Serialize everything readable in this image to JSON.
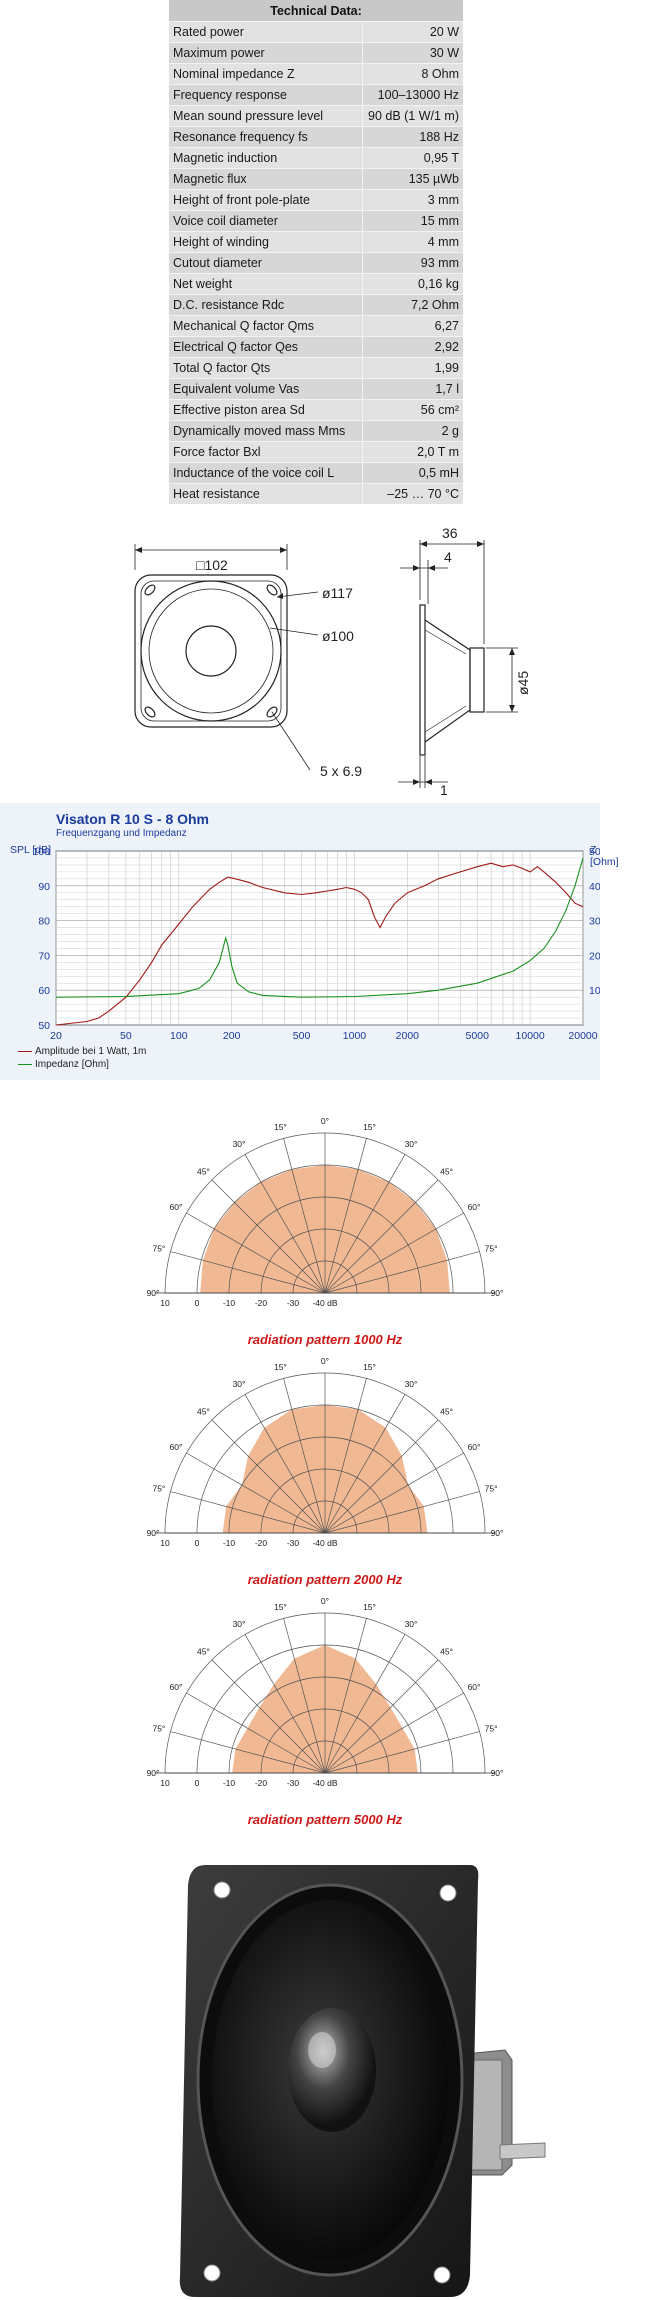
{
  "spec_table": {
    "title": "Technical Data:",
    "rows": [
      {
        "label": "Rated power",
        "value": "20 W"
      },
      {
        "label": "Maximum power",
        "value": "30 W"
      },
      {
        "label": "Nominal impedance Z",
        "value": "8 Ohm"
      },
      {
        "label": "Frequency response",
        "value": "100–13000 Hz"
      },
      {
        "label": "Mean sound pressure level",
        "value": "90 dB (1 W/1 m)"
      },
      {
        "label": "Resonance frequency fs",
        "value": "188 Hz"
      },
      {
        "label": "Magnetic induction",
        "value": "0,95 T"
      },
      {
        "label": "Magnetic flux",
        "value": "135 µWb"
      },
      {
        "label": "Height of front pole-plate",
        "value": "3 mm"
      },
      {
        "label": "Voice coil diameter",
        "value": "15 mm"
      },
      {
        "label": "Height of winding",
        "value": "4 mm"
      },
      {
        "label": "Cutout diameter",
        "value": "93 mm"
      },
      {
        "label": "Net weight",
        "value": "0,16 kg"
      },
      {
        "label": "D.C. resistance Rdc",
        "value": "7,2 Ohm"
      },
      {
        "label": "Mechanical Q factor Qms",
        "value": "6,27"
      },
      {
        "label": "Electrical Q factor Qes",
        "value": "2,92"
      },
      {
        "label": "Total Q factor Qts",
        "value": "1,99"
      },
      {
        "label": "Equivalent volume Vas",
        "value": "1,7 l"
      },
      {
        "label": "Effective piston area Sd",
        "value": "56 cm²"
      },
      {
        "label": "Dynamically moved mass Mms",
        "value": "2 g"
      },
      {
        "label": "Force factor Bxl",
        "value": "2,0 T m"
      },
      {
        "label": "Inductance of the voice coil L",
        "value": "0,5 mH"
      },
      {
        "label": "Heat resistance",
        "value": "–25 … 70 °C"
      }
    ]
  },
  "drawing": {
    "front_width": "□102",
    "outer_dia": "ø117",
    "inner_dia": "ø100",
    "holes": "5 x 6.9",
    "depth": "36",
    "flange": "4",
    "magnet_dia": "ø45",
    "thickness": "1"
  },
  "chart_data": [
    {
      "type": "line",
      "title": "Visaton R 10 S - 8 Ohm",
      "subtitle": "Frequenzgang und Impedanz",
      "ylabel": "SPL [dB]",
      "y2label": "Z [Ohm]",
      "x_scale": "log",
      "xlim": [
        20,
        20000
      ],
      "ylim": [
        50,
        100
      ],
      "y2lim": [
        0,
        50
      ],
      "x_ticks": [
        20,
        50,
        100,
        200,
        500,
        1000,
        2000,
        5000,
        10000,
        20000
      ],
      "y_ticks": [
        50,
        60,
        70,
        80,
        90,
        100
      ],
      "y2_ticks": [
        10,
        20,
        30,
        40,
        50
      ],
      "grid": true,
      "legend": "bottom-left",
      "series": [
        {
          "name": "Amplitude bei 1 Watt, 1m",
          "color": "#a01818",
          "axis": "left",
          "x": [
            20,
            30,
            35,
            40,
            50,
            60,
            70,
            80,
            100,
            120,
            150,
            170,
            190,
            210,
            250,
            300,
            400,
            500,
            600,
            700,
            800,
            900,
            1000,
            1100,
            1200,
            1300,
            1400,
            1500,
            1700,
            2000,
            2500,
            3000,
            4000,
            5000,
            6000,
            7000,
            8000,
            9000,
            10000,
            11000,
            12000,
            14000,
            16000,
            18000,
            20000
          ],
          "y": [
            50,
            51,
            52,
            54,
            58,
            63,
            68,
            73,
            79,
            84,
            89,
            91,
            92.5,
            92,
            91,
            89.5,
            88,
            87.5,
            88,
            88.5,
            89,
            89.5,
            89,
            88,
            86,
            81,
            78,
            81,
            85,
            88,
            90,
            92,
            94,
            95.5,
            96.5,
            95.5,
            96,
            95,
            94,
            95.5,
            94,
            91,
            88,
            85,
            84
          ]
        },
        {
          "name": "Impedanz [Ohm]",
          "color": "#18901e",
          "axis": "right",
          "x": [
            20,
            50,
            100,
            130,
            150,
            170,
            185,
            190,
            200,
            215,
            250,
            300,
            500,
            1000,
            2000,
            3000,
            5000,
            8000,
            10000,
            12000,
            14000,
            16000,
            18000,
            20000
          ],
          "y": [
            8,
            8.2,
            9,
            10.5,
            13,
            18,
            25,
            23,
            17,
            12,
            9.5,
            8.5,
            8,
            8.2,
            9,
            10,
            12,
            15.5,
            18.5,
            22,
            27,
            33,
            40,
            48
          ]
        }
      ]
    },
    {
      "type": "polar",
      "caption": "radiation pattern 1000 Hz",
      "angle_labels": [
        "0°",
        "15°",
        "30°",
        "45°",
        "60°",
        "75°",
        "90°"
      ],
      "radial_labels": [
        "10",
        "0",
        "-10",
        "-20",
        "-30",
        "-40 dB"
      ],
      "angles_deg": [
        0,
        15,
        30,
        45,
        60,
        75,
        90
      ],
      "level_db": [
        0,
        0,
        0,
        0,
        0,
        -0.5,
        -1
      ]
    },
    {
      "type": "polar",
      "caption": "radiation pattern 2000 Hz",
      "angle_labels": [
        "0°",
        "15°",
        "30°",
        "45°",
        "60°",
        "75°",
        "90°"
      ],
      "radial_labels": [
        "10",
        "0",
        "-10",
        "-20",
        "-30",
        "-40 dB"
      ],
      "angles_deg": [
        0,
        15,
        30,
        45,
        60,
        75,
        90
      ],
      "level_db": [
        0,
        0,
        -2,
        -6,
        -10,
        -8,
        -8
      ]
    },
    {
      "type": "polar",
      "caption": "radiation pattern 5000 Hz",
      "angle_labels": [
        "0°",
        "15°",
        "30°",
        "45°",
        "60°",
        "75°",
        "90°"
      ],
      "radial_labels": [
        "10",
        "0",
        "-10",
        "-20",
        "-30",
        "-40 dB"
      ],
      "angles_deg": [
        0,
        15,
        30,
        45,
        60,
        75,
        90
      ],
      "level_db": [
        0,
        -3,
        -8,
        -11,
        -12,
        -11,
        -11
      ]
    }
  ]
}
